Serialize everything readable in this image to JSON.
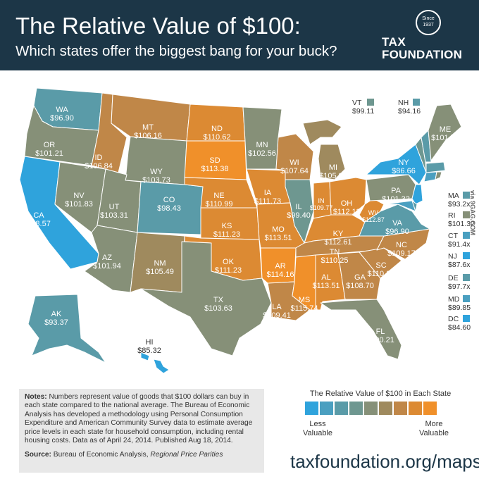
{
  "header": {
    "title": "The Relative Value of $100:",
    "subtitle": "Which states offer the biggest bang for your buck?",
    "logo_since": "Since",
    "logo_year": "1937",
    "logo_tax": "TAX",
    "logo_foundation": "FOUNDATION"
  },
  "colors": {
    "header_bg": "#1c3647",
    "scale": [
      "#2fa3dc",
      "#4a9fc0",
      "#5a9ba8",
      "#6e9790",
      "#869078",
      "#9f8a5e",
      "#c08748",
      "#dc8a33",
      "#f0902a"
    ]
  },
  "states": [
    {
      "abbr": "WA",
      "value": "$96.90"
    },
    {
      "abbr": "OR",
      "value": "$101.21"
    },
    {
      "abbr": "CA",
      "value": "$88.57"
    },
    {
      "abbr": "NV",
      "value": "$101.83"
    },
    {
      "abbr": "ID",
      "value": "$106.84"
    },
    {
      "abbr": "MT",
      "value": "$106.16"
    },
    {
      "abbr": "WY",
      "value": "$103.73"
    },
    {
      "abbr": "UT",
      "value": "$103.31"
    },
    {
      "abbr": "AZ",
      "value": "$101.94"
    },
    {
      "abbr": "CO",
      "value": "$98.43"
    },
    {
      "abbr": "NM",
      "value": "$105.49"
    },
    {
      "abbr": "ND",
      "value": "$110.62"
    },
    {
      "abbr": "SD",
      "value": "$113.38"
    },
    {
      "abbr": "NE",
      "value": "$110.99"
    },
    {
      "abbr": "KS",
      "value": "$111.23"
    },
    {
      "abbr": "OK",
      "value": "$111.23"
    },
    {
      "abbr": "TX",
      "value": "$103.63"
    },
    {
      "abbr": "MN",
      "value": "$102.56"
    },
    {
      "abbr": "IA",
      "value": "$111.73"
    },
    {
      "abbr": "MO",
      "value": "$113.51"
    },
    {
      "abbr": "AR",
      "value": "$114.16"
    },
    {
      "abbr": "LA",
      "value": "$109.41"
    },
    {
      "abbr": "WI",
      "value": "$107.64"
    },
    {
      "abbr": "IL",
      "value": "$99.40"
    },
    {
      "abbr": "MI",
      "value": "$105.93"
    },
    {
      "abbr": "IN",
      "value": "$109.77"
    },
    {
      "abbr": "OH",
      "value": "$112.11"
    },
    {
      "abbr": "KY",
      "value": "$112.61"
    },
    {
      "abbr": "TN",
      "value": "$110.25"
    },
    {
      "abbr": "MS",
      "value": "$115.74"
    },
    {
      "abbr": "AL",
      "value": "$113.51"
    },
    {
      "abbr": "GA",
      "value": "$108.70"
    },
    {
      "abbr": "FL",
      "value": "$100.21"
    },
    {
      "abbr": "SC",
      "value": "$110.25"
    },
    {
      "abbr": "NC",
      "value": "$109.17"
    },
    {
      "abbr": "VA",
      "value": "$96.90"
    },
    {
      "abbr": "WV",
      "value": "$112.87"
    },
    {
      "abbr": "PA",
      "value": "$101.32"
    },
    {
      "abbr": "NY",
      "value": "$86.66"
    },
    {
      "abbr": "ME",
      "value": "$101.73"
    },
    {
      "abbr": "AK",
      "value": "$93.37"
    },
    {
      "abbr": "HI",
      "value": "$85.32"
    }
  ],
  "side_states": [
    {
      "abbr": "VT",
      "value": "$99.11"
    },
    {
      "abbr": "NH",
      "value": "$94.16"
    },
    {
      "abbr": "MA",
      "value": "$93.2x"
    },
    {
      "abbr": "RI",
      "value": "$101.32"
    },
    {
      "abbr": "CT",
      "value": "$91.4x"
    },
    {
      "abbr": "NJ",
      "value": "$87.6x"
    },
    {
      "abbr": "DE",
      "value": "$97.7x"
    },
    {
      "abbr": "MD",
      "value": "$89.85"
    },
    {
      "abbr": "DC",
      "value": "$84.60"
    }
  ],
  "notes": {
    "label": "Notes:",
    "text": " Numbers represent value of goods that $100 dollars can buy in each state compared to the national average. The Bureau of Economic Analysis has developed a methodology using Personal Consumption Expenditure and American Community Survey data to estimate average price levels in each state for household consumption, including rental housing costs.  Data as of April 24, 2014. Published Aug 18, 2014.",
    "source_label": "Source:",
    "source_text": " Bureau of Economic Analysis, ",
    "source_italic": "Regional Price Parities"
  },
  "legend": {
    "title": "The Relative Value of $100 in Each State",
    "less": "Less\nValuable",
    "more": "More\nValuable"
  },
  "footer": {
    "url": "taxfoundation.org/maps"
  },
  "watermark": "via 9GAG.COM"
}
